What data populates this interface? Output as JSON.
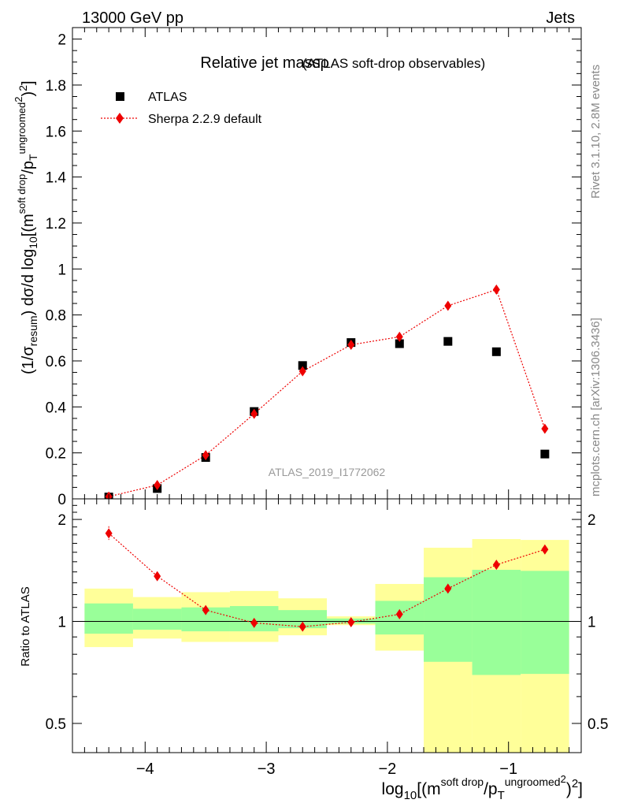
{
  "header": {
    "left": "13000 GeV pp",
    "right": "Jets"
  },
  "side_labels": {
    "rivet": "Rivet 3.1.10,  2.8M events",
    "mcplots": "mcplots.cern.ch [arXiv:1306.3436]"
  },
  "watermark": "ATLAS_2019_I1772062",
  "chart_data": [
    {
      "type": "scatter",
      "title_main": "Relative jet mass",
      "title_rho": "ρ",
      "title_sub": "(ATLAS soft-drop observables)",
      "ylabel": {
        "a": "(1/σ",
        "b": "resum",
        "c": ") dσ/d log",
        "d": "10",
        "e": "[(m",
        "f": "soft drop",
        "g": "/p",
        "h": "T",
        "i": "ungroomed",
        "j": "2",
        "k": ")",
        "l": "2",
        "m": "]"
      },
      "xlim": [
        -4.6,
        -0.4
      ],
      "ylim": [
        0,
        2.05
      ],
      "yticks": [
        {
          "v": 0,
          "label": "0"
        },
        {
          "v": 0.2,
          "label": "0.2"
        },
        {
          "v": 0.4,
          "label": "0.4"
        },
        {
          "v": 0.6,
          "label": "0.6"
        },
        {
          "v": 0.8,
          "label": "0.8"
        },
        {
          "v": 1.0,
          "label": "1"
        },
        {
          "v": 1.2,
          "label": "1.2"
        },
        {
          "v": 1.4,
          "label": "1.4"
        },
        {
          "v": 1.6,
          "label": "1.6"
        },
        {
          "v": 1.8,
          "label": "1.8"
        },
        {
          "v": 2.0,
          "label": "2"
        }
      ],
      "legend": {
        "placement": "top-left",
        "entries": [
          "ATLAS",
          "Sherpa 2.2.9 default"
        ]
      },
      "series": [
        {
          "name": "ATLAS",
          "marker": "square",
          "color": "#000000",
          "x": [
            -4.3,
            -3.9,
            -3.5,
            -3.1,
            -2.7,
            -2.3,
            -1.9,
            -1.5,
            -1.1,
            -0.7
          ],
          "y": [
            0.008,
            0.045,
            0.18,
            0.38,
            0.58,
            0.68,
            0.675,
            0.685,
            0.64,
            0.195
          ]
        },
        {
          "name": "Sherpa 2.2.9 default",
          "marker": "diamond",
          "color": "#ee0000",
          "x": [
            -4.3,
            -3.9,
            -3.5,
            -3.1,
            -2.7,
            -2.3,
            -1.9,
            -1.5,
            -1.1,
            -0.7
          ],
          "y": [
            0.01,
            0.06,
            0.19,
            0.37,
            0.555,
            0.67,
            0.705,
            0.84,
            0.91,
            0.305
          ]
        }
      ]
    },
    {
      "type": "scatter",
      "ylabel": "Ratio to ATLAS",
      "yscale": "log",
      "xlim": [
        -4.6,
        -0.4
      ],
      "ylim": [
        0.41,
        2.3
      ],
      "yticks": [
        {
          "v": 0.5,
          "label": "0.5"
        },
        {
          "v": 1,
          "label": "1"
        },
        {
          "v": 2,
          "label": "2"
        }
      ],
      "xticks": [
        {
          "v": -4,
          "label": "−4"
        },
        {
          "v": -3,
          "label": "−3"
        },
        {
          "v": -2,
          "label": "−2"
        },
        {
          "v": -1,
          "label": "−1"
        }
      ],
      "xlabel": {
        "a": "log",
        "b": "10",
        "c": "[(m",
        "d": "soft drop",
        "e": "/p",
        "f": "T",
        "g": "ungroomed",
        "h": "2",
        "i": ")",
        "j": "2",
        "k": "]"
      },
      "bands": [
        {
          "x0": -4.5,
          "x1": -4.1,
          "yellow": [
            0.84,
            1.25
          ],
          "green": [
            0.92,
            1.13
          ]
        },
        {
          "x0": -4.1,
          "x1": -3.7,
          "yellow": [
            0.89,
            1.18
          ],
          "green": [
            0.945,
            1.09
          ]
        },
        {
          "x0": -3.7,
          "x1": -3.3,
          "yellow": [
            0.87,
            1.22
          ],
          "green": [
            0.935,
            1.1
          ]
        },
        {
          "x0": -3.3,
          "x1": -2.9,
          "yellow": [
            0.87,
            1.23
          ],
          "green": [
            0.935,
            1.11
          ]
        },
        {
          "x0": -2.9,
          "x1": -2.5,
          "yellow": [
            0.91,
            1.17
          ],
          "green": [
            0.955,
            1.08
          ]
        },
        {
          "x0": -2.5,
          "x1": -2.1,
          "yellow": [
            0.975,
            1.035
          ],
          "green": [
            0.985,
            1.02
          ]
        },
        {
          "x0": -2.1,
          "x1": -1.7,
          "yellow": [
            0.82,
            1.29
          ],
          "green": [
            0.915,
            1.15
          ]
        },
        {
          "x0": -1.7,
          "x1": -1.3,
          "yellow": [
            0.395,
            1.65
          ],
          "green": [
            0.76,
            1.35
          ]
        },
        {
          "x0": -1.3,
          "x1": -0.9,
          "yellow": [
            0.36,
            1.75
          ],
          "green": [
            0.695,
            1.42
          ]
        },
        {
          "x0": -0.9,
          "x1": -0.5,
          "yellow": [
            0.37,
            1.74
          ],
          "green": [
            0.7,
            1.41
          ]
        }
      ],
      "series": [
        {
          "name": "Sherpa 2.2.9 default",
          "marker": "diamond",
          "color": "#ee0000",
          "x": [
            -4.3,
            -3.9,
            -3.5,
            -3.1,
            -2.7,
            -2.3,
            -1.9,
            -1.5,
            -1.1,
            -0.7
          ],
          "y": [
            1.82,
            1.36,
            1.08,
            0.99,
            0.965,
            0.995,
            1.05,
            1.25,
            1.47,
            1.63
          ],
          "yerr_lo": [
            1.74,
            1.33,
            1.07,
            0.985,
            0.96,
            0.99,
            1.045,
            1.24,
            1.46,
            1.62
          ],
          "yerr_hi": [
            1.91,
            1.39,
            1.095,
            0.995,
            0.97,
            1.0,
            1.055,
            1.26,
            1.48,
            1.64
          ]
        }
      ]
    }
  ],
  "colors": {
    "data": "#000000",
    "mc": "#ee0000",
    "band_yellow": "#ffff99",
    "band_green": "#99ff99",
    "side_text": "#888888",
    "watermark": "#999999"
  }
}
